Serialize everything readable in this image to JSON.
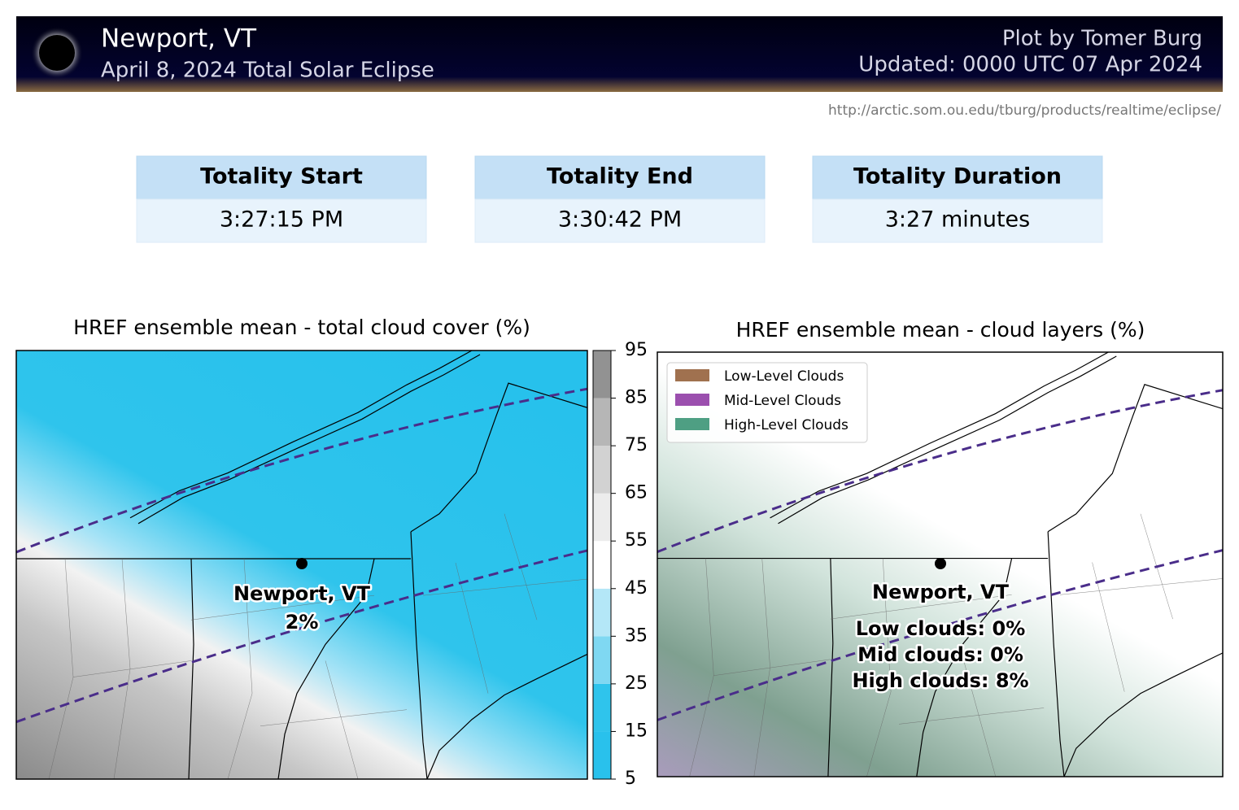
{
  "header": {
    "title": "Newport, VT",
    "subtitle": "April 8, 2024 Total Solar Eclipse",
    "credit": "Plot by Tomer Burg",
    "updated": "Updated: 0000 UTC 07 Apr 2024"
  },
  "url": "http://arctic.som.ou.edu/tburg/products/realtime/eclipse/",
  "table": {
    "headers": [
      "Totality Start",
      "Totality End",
      "Totality Duration"
    ],
    "values": [
      "3:27:15 PM",
      "3:30:42 PM",
      "3:27 minutes"
    ]
  },
  "maps": [
    {
      "title": "HREF ensemble mean - total cloud cover (%)",
      "location": "Newport, VT",
      "annotations": [
        "2%"
      ],
      "colorbar": {
        "ticks": [
          5,
          15,
          25,
          35,
          45,
          55,
          65,
          75,
          85,
          95
        ],
        "colors": [
          "#29c1ec",
          "#2fc4ec",
          "#7fd8f2",
          "#b4e7f7",
          "#ffffff",
          "#ececec",
          "#d2d2d2",
          "#b6b6b6",
          "#929292"
        ]
      }
    },
    {
      "title": "HREF ensemble mean - cloud layers (%)",
      "location": "Newport, VT",
      "annotations": [
        "Low clouds: 0%",
        "Mid clouds: 0%",
        "High clouds: 8%"
      ],
      "legend": [
        {
          "name": "Low-Level Clouds",
          "color": "#a0714f"
        },
        {
          "name": "Mid-Level Clouds",
          "color": "#9b4fae"
        },
        {
          "name": "High-Level Clouds",
          "color": "#4e9f83"
        }
      ]
    }
  ]
}
